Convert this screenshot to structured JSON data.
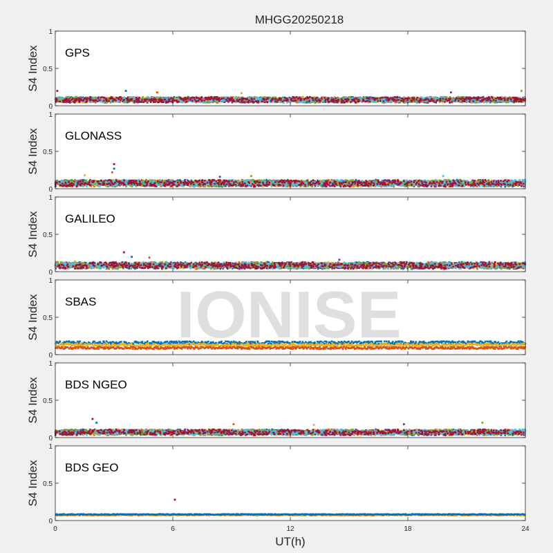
{
  "figure": {
    "title": "MHGG20250218",
    "xlabel": "UT(h)",
    "watermark": "IONISE"
  },
  "colors": {
    "figure_bg": "#f0f0f0",
    "axes_bg": "#ffffff",
    "watermark": "#d9d9d9",
    "series": [
      "#0072BD",
      "#D95319",
      "#EDB120",
      "#7E2F8E",
      "#77AC30",
      "#4DBEEE",
      "#A2142F"
    ]
  },
  "chart_data": [
    {
      "type": "scatter",
      "panel": "GPS",
      "label": "GPS",
      "ylabel": "S4 Index",
      "xlim": [
        0,
        24
      ],
      "ylim": [
        0,
        1
      ],
      "xticks": [
        0,
        6,
        12,
        18,
        24
      ],
      "yticks": [
        {
          "value": 0,
          "label": "0"
        },
        {
          "value": 0.5,
          "label": "0.5"
        },
        {
          "value": 1,
          "label": "1"
        }
      ],
      "base_level": 0.09,
      "spread": 0.04,
      "spikes": [
        {
          "x": 0.1,
          "y": 0.2
        },
        {
          "x": 3.6,
          "y": 0.2
        },
        {
          "x": 5.2,
          "y": 0.18
        },
        {
          "x": 9.5,
          "y": 0.17
        },
        {
          "x": 20.2,
          "y": 0.18
        },
        {
          "x": 23.8,
          "y": 0.2
        }
      ]
    },
    {
      "type": "scatter",
      "panel": "GLONASS",
      "label": "GLONASS",
      "ylabel": "S4 Index",
      "xlim": [
        0,
        24
      ],
      "ylim": [
        0,
        1
      ],
      "xticks": [
        0,
        6,
        12,
        18,
        24
      ],
      "yticks": [
        {
          "value": 0,
          "label": "0"
        },
        {
          "value": 0.5,
          "label": "0.5"
        },
        {
          "value": 1,
          "label": "1"
        }
      ],
      "base_level": 0.08,
      "spread": 0.05,
      "spikes": [
        {
          "x": 3.0,
          "y": 0.33
        },
        {
          "x": 3.0,
          "y": 0.27
        },
        {
          "x": 2.9,
          "y": 0.22
        },
        {
          "x": 1.5,
          "y": 0.18
        },
        {
          "x": 8.4,
          "y": 0.16
        },
        {
          "x": 10.0,
          "y": 0.17
        },
        {
          "x": 19.8,
          "y": 0.17
        }
      ]
    },
    {
      "type": "scatter",
      "panel": "GALILEO",
      "label": "GALILEO",
      "ylabel": "S4 Index",
      "xlim": [
        0,
        24
      ],
      "ylim": [
        0,
        1
      ],
      "xticks": [
        0,
        6,
        12,
        18,
        24
      ],
      "yticks": [
        {
          "value": 0,
          "label": "0"
        },
        {
          "value": 0.5,
          "label": "0.5"
        },
        {
          "value": 1,
          "label": "1"
        }
      ],
      "base_level": 0.09,
      "spread": 0.05,
      "spikes": [
        {
          "x": 3.5,
          "y": 0.26
        },
        {
          "x": 3.9,
          "y": 0.2
        },
        {
          "x": 4.8,
          "y": 0.19
        },
        {
          "x": 1.0,
          "y": 0.14
        },
        {
          "x": 14.5,
          "y": 0.16
        }
      ]
    },
    {
      "type": "scatter",
      "panel": "SBAS",
      "label": "SBAS",
      "ylabel": "S4 Index",
      "xlim": [
        0,
        24
      ],
      "ylim": [
        0,
        1
      ],
      "xticks": [
        0,
        6,
        12,
        18,
        24
      ],
      "yticks": [
        {
          "value": 0,
          "label": "0"
        },
        {
          "value": 0.5,
          "label": "0.5"
        },
        {
          "value": 1,
          "label": "1"
        }
      ],
      "bands": [
        {
          "color_index": 0,
          "level": 0.16,
          "spread": 0.02
        },
        {
          "color_index": 2,
          "level": 0.13,
          "spread": 0.02
        },
        {
          "color_index": 1,
          "level": 0.09,
          "spread": 0.015
        }
      ],
      "spikes": []
    },
    {
      "type": "scatter",
      "panel": "BDS NGEO",
      "label": "BDS NGEO",
      "ylabel": "S4 Index",
      "xlim": [
        0,
        24
      ],
      "ylim": [
        0,
        1
      ],
      "xticks": [
        0,
        6,
        12,
        18,
        24
      ],
      "yticks": [
        {
          "value": 0,
          "label": "0"
        },
        {
          "value": 0.5,
          "label": "0.5"
        },
        {
          "value": 1,
          "label": "1"
        }
      ],
      "base_level": 0.08,
      "spread": 0.04,
      "spikes": [
        {
          "x": 1.9,
          "y": 0.25
        },
        {
          "x": 2.1,
          "y": 0.2
        },
        {
          "x": 9.1,
          "y": 0.18
        },
        {
          "x": 13.2,
          "y": 0.17
        },
        {
          "x": 17.8,
          "y": 0.18
        },
        {
          "x": 21.8,
          "y": 0.2
        }
      ]
    },
    {
      "type": "scatter",
      "panel": "BDS GEO",
      "label": "BDS GEO",
      "ylabel": "S4 Index",
      "xlim": [
        0,
        24
      ],
      "ylim": [
        0,
        1
      ],
      "xticks": [
        0,
        6,
        12,
        18,
        24
      ],
      "yticks": [
        {
          "value": 0,
          "label": "0"
        },
        {
          "value": 0.5,
          "label": "0.5"
        },
        {
          "value": 1,
          "label": "1"
        }
      ],
      "bands": [
        {
          "color_index": 2,
          "level": 0.075,
          "spread": 0.01
        },
        {
          "color_index": 0,
          "level": 0.082,
          "spread": 0.006
        }
      ],
      "spikes": [
        {
          "x": 6.1,
          "y": 0.28
        }
      ]
    }
  ]
}
